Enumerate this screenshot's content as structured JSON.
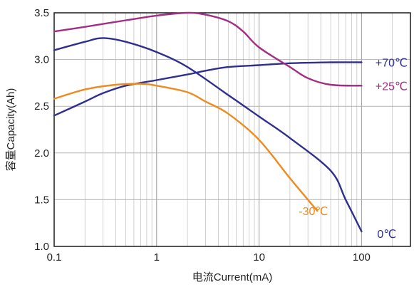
{
  "chart_data": {
    "type": "line",
    "title": "",
    "xlabel": "电流Current(mA)",
    "ylabel": "容量Capacity(Ah)",
    "x_scale": "log",
    "xlim": [
      0.1,
      300
    ],
    "ylim": [
      1.0,
      3.5
    ],
    "x_ticks": [
      0.1,
      1,
      10,
      100
    ],
    "x_tick_labels": [
      "0.1",
      "1",
      "10",
      "100"
    ],
    "y_ticks": [
      1.0,
      1.5,
      2.0,
      2.5,
      3.0,
      3.5
    ],
    "y_tick_labels": [
      "1.0",
      "1.5",
      "2.0",
      "2.5",
      "3.0",
      "3.5"
    ],
    "grid": true,
    "legend": "labels-at-line-ends",
    "series": [
      {
        "name": "+70℃",
        "color": "#2e2f8f",
        "x": [
          0.1,
          0.2,
          0.3,
          0.5,
          1,
          2,
          3,
          5,
          10,
          20,
          50,
          100
        ],
        "y": [
          2.4,
          2.55,
          2.64,
          2.72,
          2.78,
          2.84,
          2.88,
          2.92,
          2.94,
          2.96,
          2.97,
          2.97
        ]
      },
      {
        "name": "+25℃",
        "color": "#a12e82",
        "x": [
          0.1,
          0.2,
          0.5,
          1,
          2,
          3,
          5,
          7,
          10,
          20,
          30,
          50,
          100
        ],
        "y": [
          3.3,
          3.35,
          3.42,
          3.47,
          3.5,
          3.48,
          3.41,
          3.3,
          3.13,
          2.92,
          2.8,
          2.73,
          2.72
        ]
      },
      {
        "name": "0℃",
        "color": "#2e2f8f",
        "x": [
          0.1,
          0.2,
          0.3,
          0.5,
          1,
          2,
          5,
          10,
          20,
          50,
          70,
          100
        ],
        "y": [
          3.1,
          3.19,
          3.23,
          3.19,
          3.08,
          2.92,
          2.62,
          2.39,
          2.16,
          1.81,
          1.5,
          1.16
        ]
      },
      {
        "name": "-30℃",
        "color": "#ef8a1f",
        "x": [
          0.1,
          0.2,
          0.4,
          0.7,
          1,
          2,
          3,
          5,
          10,
          20,
          37
        ],
        "y": [
          2.58,
          2.68,
          2.73,
          2.74,
          2.72,
          2.65,
          2.55,
          2.42,
          2.14,
          1.73,
          1.38
        ]
      }
    ]
  }
}
